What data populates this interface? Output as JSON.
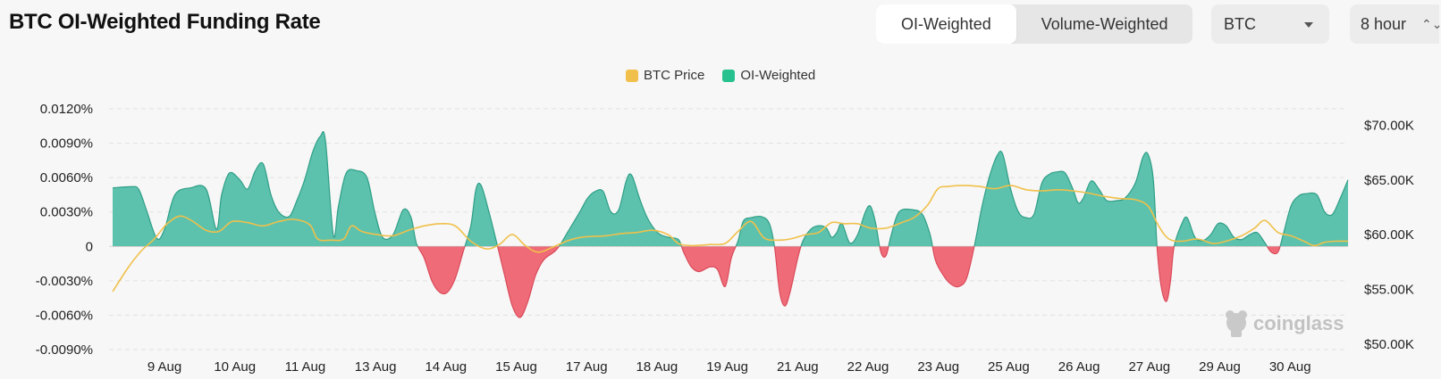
{
  "header": {
    "title": "BTC OI-Weighted Funding Rate",
    "tabs": [
      "OI-Weighted",
      "Volume-Weighted"
    ],
    "active_tab": "OI-Weighted",
    "coin_select": "BTC",
    "interval_select": "8 hour"
  },
  "watermark": "coinglass",
  "colors": {
    "positive": "#5cc2ae",
    "negative": "#f06b78",
    "price": "#f0c04a",
    "background": "#f7f7f7"
  },
  "chart_data": {
    "type": "area",
    "legend": [
      {
        "name": "BTC Price",
        "color": "#f0c04a"
      },
      {
        "name": "OI-Weighted",
        "color": "#27c08f"
      }
    ],
    "x_labels": [
      "9 Aug",
      "10 Aug",
      "11 Aug",
      "13 Aug",
      "14 Aug",
      "15 Aug",
      "17 Aug",
      "18 Aug",
      "19 Aug",
      "21 Aug",
      "22 Aug",
      "23 Aug",
      "25 Aug",
      "26 Aug",
      "27 Aug",
      "29 Aug",
      "30 Aug"
    ],
    "y_left": {
      "ticks": [
        "0.0120%",
        "0.0090%",
        "0.0060%",
        "0.0030%",
        "0",
        "-0.0030%",
        "-0.0060%",
        "-0.0090%"
      ],
      "tick_values": [
        0.012,
        0.009,
        0.006,
        0.003,
        0,
        -0.003,
        -0.006,
        -0.009
      ],
      "range": [
        -0.009,
        0.012
      ]
    },
    "y_right": {
      "ticks": [
        "$70.00K",
        "$65.00K",
        "$60.00K",
        "$55.00K",
        "$50.00K"
      ],
      "tick_values": [
        70000,
        65000,
        60000,
        55000,
        50000
      ],
      "range": [
        49500,
        71500
      ]
    },
    "x_range": [
      8.0,
      31.8
    ],
    "series": [
      {
        "name": "OI-Weighted",
        "values": [
          [
            8.0,
            0.0051
          ],
          [
            8.35,
            0.0052
          ],
          [
            8.5,
            0.005
          ],
          [
            8.65,
            0.0032
          ],
          [
            8.85,
            0.0007
          ],
          [
            9.0,
            0.0015
          ],
          [
            9.2,
            0.0045
          ],
          [
            9.5,
            0.0051
          ],
          [
            9.8,
            0.005
          ],
          [
            10.0,
            0.0015
          ],
          [
            10.1,
            0.0045
          ],
          [
            10.25,
            0.0064
          ],
          [
            10.45,
            0.0058
          ],
          [
            10.6,
            0.005
          ],
          [
            10.75,
            0.0066
          ],
          [
            10.9,
            0.0072
          ],
          [
            11.05,
            0.0045
          ],
          [
            11.2,
            0.003
          ],
          [
            11.4,
            0.0026
          ],
          [
            11.55,
            0.004
          ],
          [
            11.7,
            0.0058
          ],
          [
            11.85,
            0.0082
          ],
          [
            12.0,
            0.0096
          ],
          [
            12.1,
            0.0092
          ],
          [
            12.25,
            0.001
          ],
          [
            12.35,
            0.0035
          ],
          [
            12.5,
            0.0064
          ],
          [
            12.7,
            0.0066
          ],
          [
            12.9,
            0.006
          ],
          [
            13.05,
            0.003
          ],
          [
            13.2,
            0.0008
          ],
          [
            13.4,
            0.001
          ],
          [
            13.6,
            0.0032
          ],
          [
            13.75,
            0.0025
          ],
          [
            13.85,
            0.0003
          ],
          [
            14.0,
            -0.001
          ],
          [
            14.15,
            -0.003
          ],
          [
            14.3,
            -0.004
          ],
          [
            14.45,
            -0.004
          ],
          [
            14.6,
            -0.0028
          ],
          [
            14.75,
            -0.0005
          ],
          [
            14.9,
            0.0018
          ],
          [
            15.0,
            0.005
          ],
          [
            15.1,
            0.0053
          ],
          [
            15.25,
            0.003
          ],
          [
            15.4,
            0.0003
          ],
          [
            15.55,
            -0.0025
          ],
          [
            15.7,
            -0.0052
          ],
          [
            15.85,
            -0.0062
          ],
          [
            16.0,
            -0.0048
          ],
          [
            16.15,
            -0.0025
          ],
          [
            16.3,
            -0.0012
          ],
          [
            16.5,
            -0.0005
          ],
          [
            16.6,
            0.0
          ],
          [
            16.8,
            0.0015
          ],
          [
            17.0,
            0.003
          ],
          [
            17.15,
            0.0042
          ],
          [
            17.3,
            0.0048
          ],
          [
            17.45,
            0.0048
          ],
          [
            17.6,
            0.003
          ],
          [
            17.75,
            0.0032
          ],
          [
            17.9,
            0.0058
          ],
          [
            18.0,
            0.0062
          ],
          [
            18.15,
            0.0042
          ],
          [
            18.3,
            0.0025
          ],
          [
            18.5,
            0.0012
          ],
          [
            18.7,
            0.0008
          ],
          [
            18.9,
            0.0006
          ],
          [
            19.0,
            -0.0005
          ],
          [
            19.15,
            -0.0018
          ],
          [
            19.3,
            -0.0022
          ],
          [
            19.5,
            -0.0018
          ],
          [
            19.65,
            -0.002
          ],
          [
            19.8,
            -0.0035
          ],
          [
            19.92,
            -0.001
          ],
          [
            20.05,
            0.0005
          ],
          [
            20.15,
            0.0022
          ],
          [
            20.3,
            0.0025
          ],
          [
            20.5,
            0.0026
          ],
          [
            20.65,
            0.002
          ],
          [
            20.75,
            0.0
          ],
          [
            20.85,
            -0.004
          ],
          [
            20.95,
            -0.0052
          ],
          [
            21.05,
            -0.004
          ],
          [
            21.2,
            -0.001
          ],
          [
            21.3,
            0.0005
          ],
          [
            21.45,
            0.0015
          ],
          [
            21.6,
            0.0018
          ],
          [
            21.75,
            0.0016
          ],
          [
            21.85,
            0.0008
          ],
          [
            21.95,
            0.0012
          ],
          [
            22.05,
            0.002
          ],
          [
            22.2,
            0.0003
          ],
          [
            22.35,
            0.001
          ],
          [
            22.5,
            0.003
          ],
          [
            22.6,
            0.0035
          ],
          [
            22.7,
            0.002
          ],
          [
            22.8,
            -0.0005
          ],
          [
            22.9,
            -0.0008
          ],
          [
            23.0,
            0.001
          ],
          [
            23.15,
            0.003
          ],
          [
            23.4,
            0.0032
          ],
          [
            23.6,
            0.0028
          ],
          [
            23.75,
            0.001
          ],
          [
            23.85,
            -0.0012
          ],
          [
            24.0,
            -0.0025
          ],
          [
            24.15,
            -0.0033
          ],
          [
            24.3,
            -0.0035
          ],
          [
            24.45,
            -0.0028
          ],
          [
            24.6,
            0.0
          ],
          [
            24.75,
            0.0035
          ],
          [
            24.9,
            0.0062
          ],
          [
            25.05,
            0.008
          ],
          [
            25.15,
            0.008
          ],
          [
            25.3,
            0.005
          ],
          [
            25.45,
            0.003
          ],
          [
            25.6,
            0.0025
          ],
          [
            25.75,
            0.0028
          ],
          [
            25.9,
            0.0055
          ],
          [
            26.05,
            0.0063
          ],
          [
            26.2,
            0.0065
          ],
          [
            26.35,
            0.0064
          ],
          [
            26.5,
            0.005
          ],
          [
            26.6,
            0.0038
          ],
          [
            26.7,
            0.0042
          ],
          [
            26.85,
            0.0057
          ],
          [
            27.0,
            0.005
          ],
          [
            27.15,
            0.004
          ],
          [
            27.35,
            0.004
          ],
          [
            27.5,
            0.0042
          ],
          [
            27.7,
            0.0055
          ],
          [
            27.85,
            0.0078
          ],
          [
            27.95,
            0.008
          ],
          [
            28.05,
            0.0058
          ],
          [
            28.12,
            0.0
          ],
          [
            28.2,
            -0.0035
          ],
          [
            28.3,
            -0.0048
          ],
          [
            28.38,
            -0.003
          ],
          [
            28.45,
            0.0
          ],
          [
            28.6,
            0.002
          ],
          [
            28.7,
            0.0025
          ],
          [
            28.85,
            0.0008
          ],
          [
            29.0,
            0.0005
          ],
          [
            29.15,
            0.001
          ],
          [
            29.3,
            0.002
          ],
          [
            29.45,
            0.0018
          ],
          [
            29.6,
            0.0008
          ],
          [
            29.75,
            0.0006
          ],
          [
            29.9,
            0.001
          ],
          [
            30.05,
            0.0012
          ],
          [
            30.2,
            0.0003
          ],
          [
            30.32,
            -0.0005
          ],
          [
            30.45,
            -0.0005
          ],
          [
            30.55,
            0.001
          ],
          [
            30.7,
            0.0035
          ],
          [
            30.85,
            0.0044
          ],
          [
            31.0,
            0.0046
          ],
          [
            31.2,
            0.0045
          ],
          [
            31.35,
            0.003
          ],
          [
            31.5,
            0.0028
          ],
          [
            31.65,
            0.0042
          ],
          [
            31.8,
            0.0058
          ]
        ]
      },
      {
        "name": "BTC Price",
        "values": [
          [
            8.0,
            54800
          ],
          [
            8.3,
            57000
          ],
          [
            8.55,
            58500
          ],
          [
            8.8,
            59600
          ],
          [
            9.05,
            61000
          ],
          [
            9.3,
            61700
          ],
          [
            9.55,
            61200
          ],
          [
            9.8,
            60400
          ],
          [
            10.05,
            60300
          ],
          [
            10.3,
            61200
          ],
          [
            10.6,
            61100
          ],
          [
            10.9,
            60800
          ],
          [
            11.2,
            61200
          ],
          [
            11.5,
            61400
          ],
          [
            11.8,
            60900
          ],
          [
            11.95,
            59600
          ],
          [
            12.2,
            59500
          ],
          [
            12.45,
            59600
          ],
          [
            12.6,
            60800
          ],
          [
            12.8,
            60300
          ],
          [
            13.1,
            60000
          ],
          [
            13.4,
            59900
          ],
          [
            13.7,
            60400
          ],
          [
            14.0,
            60800
          ],
          [
            14.3,
            61000
          ],
          [
            14.6,
            60800
          ],
          [
            14.9,
            59400
          ],
          [
            15.2,
            58700
          ],
          [
            15.45,
            59100
          ],
          [
            15.7,
            60000
          ],
          [
            15.95,
            59000
          ],
          [
            16.2,
            58400
          ],
          [
            16.5,
            58900
          ],
          [
            16.8,
            59500
          ],
          [
            17.1,
            59800
          ],
          [
            17.5,
            59900
          ],
          [
            17.8,
            60100
          ],
          [
            18.1,
            60200
          ],
          [
            18.4,
            60400
          ],
          [
            18.7,
            60000
          ],
          [
            18.9,
            59200
          ],
          [
            19.15,
            59000
          ],
          [
            19.5,
            59100
          ],
          [
            19.8,
            59200
          ],
          [
            20.05,
            60300
          ],
          [
            20.3,
            61200
          ],
          [
            20.55,
            59700
          ],
          [
            20.8,
            59500
          ],
          [
            21.05,
            59600
          ],
          [
            21.35,
            60000
          ],
          [
            21.6,
            60200
          ],
          [
            21.85,
            61100
          ],
          [
            22.1,
            61000
          ],
          [
            22.35,
            61000
          ],
          [
            22.6,
            60600
          ],
          [
            22.9,
            60600
          ],
          [
            23.2,
            61100
          ],
          [
            23.45,
            61600
          ],
          [
            23.7,
            62700
          ],
          [
            23.9,
            64200
          ],
          [
            24.1,
            64400
          ],
          [
            24.4,
            64500
          ],
          [
            24.7,
            64400
          ],
          [
            25.0,
            64200
          ],
          [
            25.3,
            64500
          ],
          [
            25.6,
            64100
          ],
          [
            25.9,
            64000
          ],
          [
            26.2,
            64100
          ],
          [
            26.5,
            64000
          ],
          [
            26.8,
            63800
          ],
          [
            27.1,
            63500
          ],
          [
            27.4,
            63300
          ],
          [
            27.7,
            63200
          ],
          [
            27.95,
            62600
          ],
          [
            28.15,
            60800
          ],
          [
            28.35,
            59600
          ],
          [
            28.6,
            59400
          ],
          [
            28.9,
            59600
          ],
          [
            29.2,
            59200
          ],
          [
            29.45,
            59400
          ],
          [
            29.75,
            59900
          ],
          [
            30.0,
            60600
          ],
          [
            30.2,
            61300
          ],
          [
            30.45,
            60200
          ],
          [
            30.7,
            59900
          ],
          [
            30.95,
            59400
          ],
          [
            31.15,
            59000
          ],
          [
            31.35,
            59300
          ],
          [
            31.55,
            59400
          ],
          [
            31.8,
            59400
          ]
        ]
      }
    ],
    "grid": true,
    "legend_position": "top-center"
  }
}
